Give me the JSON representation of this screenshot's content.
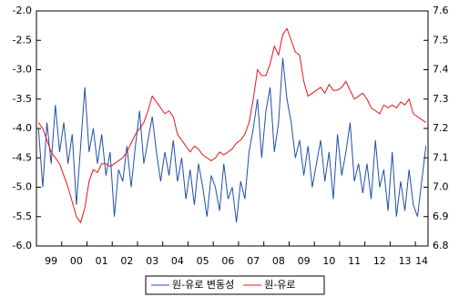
{
  "chart_data": {
    "type": "line",
    "categories": [
      null,
      null,
      null,
      "99",
      null,
      null,
      null,
      null,
      null,
      "00",
      null,
      null,
      null,
      null,
      null,
      "01",
      null,
      null,
      null,
      null,
      null,
      "02",
      null,
      null,
      null,
      null,
      null,
      "03",
      null,
      null,
      null,
      null,
      null,
      "04",
      null,
      null,
      null,
      null,
      null,
      "05",
      null,
      null,
      null,
      null,
      null,
      "06",
      null,
      null,
      null,
      null,
      null,
      "07",
      null,
      null,
      null,
      null,
      null,
      "08",
      null,
      null,
      null,
      null,
      null,
      "09",
      null,
      null,
      null,
      null,
      null,
      "10",
      null,
      null,
      null,
      null,
      null,
      "11",
      null,
      null,
      null,
      null,
      null,
      "12",
      null,
      null,
      null,
      null,
      null,
      "13",
      null,
      null,
      null,
      "14",
      null
    ],
    "series": [
      {
        "name": "원-유로 변동성",
        "color": "#1f4fa8",
        "axis": "y",
        "values": [
          -4.0,
          -5.0,
          -3.9,
          -4.6,
          -3.6,
          -4.4,
          -3.9,
          -4.6,
          -4.1,
          -5.3,
          -4.3,
          -3.3,
          -4.4,
          -4.0,
          -4.6,
          -4.1,
          -4.8,
          -4.4,
          -5.5,
          -4.7,
          -4.9,
          -4.3,
          -5.0,
          -4.3,
          -3.7,
          -4.6,
          -4.2,
          -3.8,
          -4.4,
          -4.9,
          -4.4,
          -4.8,
          -4.2,
          -4.9,
          -4.5,
          -5.2,
          -4.7,
          -5.3,
          -4.6,
          -5.0,
          -5.5,
          -4.8,
          -5.0,
          -5.4,
          -4.6,
          -5.2,
          -5.0,
          -5.6,
          -4.9,
          -5.2,
          -4.4,
          -4.0,
          -3.5,
          -4.5,
          -3.7,
          -3.3,
          -4.4,
          -3.9,
          -2.8,
          -3.5,
          -3.9,
          -4.5,
          -4.2,
          -4.8,
          -4.3,
          -5.0,
          -4.6,
          -4.2,
          -4.9,
          -4.4,
          -5.2,
          -4.1,
          -4.8,
          -4.4,
          -3.9,
          -4.9,
          -4.6,
          -5.1,
          -4.6,
          -5.2,
          -4.2,
          -5.0,
          -4.7,
          -5.4,
          -4.4,
          -5.5,
          -4.9,
          -5.4,
          -4.7,
          -5.3,
          -5.5,
          -4.9,
          -4.3
        ]
      },
      {
        "name": "원-유로",
        "color": "#e8141c",
        "axis": "y2",
        "values": [
          7.22,
          7.2,
          7.16,
          7.12,
          7.1,
          7.08,
          7.04,
          7.0,
          6.95,
          6.9,
          6.88,
          6.93,
          7.02,
          7.06,
          7.05,
          7.08,
          7.08,
          7.07,
          7.08,
          7.09,
          7.1,
          7.12,
          7.15,
          7.18,
          7.2,
          7.22,
          7.26,
          7.31,
          7.29,
          7.27,
          7.25,
          7.26,
          7.24,
          7.18,
          7.16,
          7.14,
          7.12,
          7.14,
          7.13,
          7.11,
          7.1,
          7.09,
          7.1,
          7.12,
          7.11,
          7.12,
          7.13,
          7.15,
          7.16,
          7.18,
          7.22,
          7.3,
          7.4,
          7.38,
          7.38,
          7.42,
          7.48,
          7.45,
          7.52,
          7.54,
          7.5,
          7.46,
          7.45,
          7.36,
          7.31,
          7.32,
          7.33,
          7.34,
          7.32,
          7.35,
          7.33,
          7.33,
          7.34,
          7.36,
          7.33,
          7.3,
          7.31,
          7.32,
          7.3,
          7.27,
          7.26,
          7.25,
          7.28,
          7.27,
          7.28,
          7.27,
          7.29,
          7.28,
          7.3,
          7.25,
          7.24,
          7.23,
          7.22
        ]
      }
    ],
    "ylim": [
      -6,
      -2
    ],
    "yticks": [
      {
        "value": -6,
        "label": "-6.0"
      },
      -5.5,
      {
        "value": -5,
        "label": "-5.0"
      },
      -4.5,
      {
        "value": -4,
        "label": "-4.0"
      },
      -3.5,
      {
        "value": -3,
        "label": "-3.0"
      },
      -2.5,
      {
        "value": -2,
        "label": "-2.0"
      }
    ],
    "y2lim": [
      6.8,
      7.6
    ],
    "y2ticks": [
      6.8,
      6.9,
      {
        "value": 7,
        "label": "7.0"
      },
      7.1,
      7.2,
      7.3,
      7.4,
      7.5,
      7.6
    ],
    "legend": "bottom"
  }
}
